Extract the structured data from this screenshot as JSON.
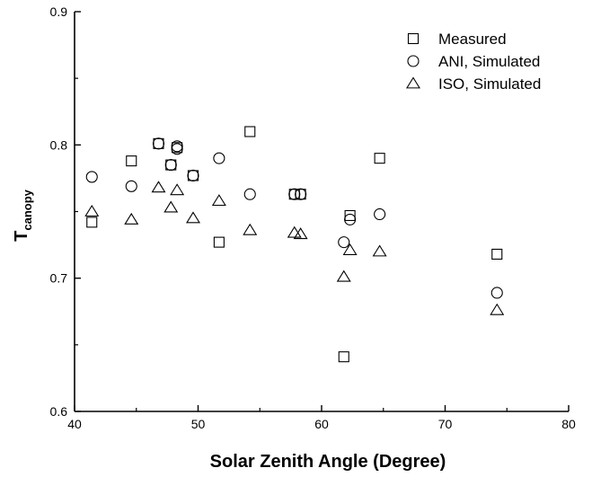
{
  "chart_data": {
    "type": "scatter",
    "title": "",
    "xlabel": "Solar Zenith Angle (Degree)",
    "ylabel_main": "T",
    "ylabel_sub": "canopy",
    "xlim": [
      40,
      80
    ],
    "ylim": [
      0.6,
      0.9
    ],
    "xticks": [
      "40",
      "50",
      "60",
      "70",
      "80"
    ],
    "yticks": [
      "0.6",
      "0.7",
      "0.8",
      "0.9"
    ],
    "grid": false,
    "legend_position": "top-right",
    "series": [
      {
        "name": "Measured",
        "marker": "square",
        "points": [
          [
            41.4,
            0.742
          ],
          [
            44.6,
            0.788
          ],
          [
            46.8,
            0.801
          ],
          [
            47.8,
            0.785
          ],
          [
            48.3,
            0.798
          ],
          [
            49.6,
            0.777
          ],
          [
            51.7,
            0.727
          ],
          [
            54.2,
            0.81
          ],
          [
            57.8,
            0.763
          ],
          [
            58.3,
            0.763
          ],
          [
            61.8,
            0.641
          ],
          [
            62.3,
            0.747
          ],
          [
            64.7,
            0.79
          ],
          [
            74.2,
            0.718
          ]
        ]
      },
      {
        "name": "ANI, Simulated",
        "marker": "circle",
        "points": [
          [
            41.4,
            0.776
          ],
          [
            44.6,
            0.769
          ],
          [
            46.8,
            0.801
          ],
          [
            47.8,
            0.785
          ],
          [
            48.3,
            0.797
          ],
          [
            48.3,
            0.799
          ],
          [
            49.6,
            0.777
          ],
          [
            51.7,
            0.79
          ],
          [
            54.2,
            0.763
          ],
          [
            57.8,
            0.763
          ],
          [
            58.3,
            0.763
          ],
          [
            61.8,
            0.727
          ],
          [
            62.3,
            0.744
          ],
          [
            64.7,
            0.748
          ],
          [
            74.2,
            0.689
          ]
        ]
      },
      {
        "name": "ISO, Simulated",
        "marker": "triangle",
        "points": [
          [
            41.4,
            0.75
          ],
          [
            44.6,
            0.744
          ],
          [
            46.8,
            0.768
          ],
          [
            47.8,
            0.753
          ],
          [
            48.3,
            0.766
          ],
          [
            49.6,
            0.745
          ],
          [
            51.7,
            0.758
          ],
          [
            54.2,
            0.736
          ],
          [
            57.8,
            0.734
          ],
          [
            58.3,
            0.733
          ],
          [
            61.8,
            0.701
          ],
          [
            62.3,
            0.721
          ],
          [
            64.7,
            0.72
          ],
          [
            74.2,
            0.676
          ]
        ]
      }
    ]
  }
}
